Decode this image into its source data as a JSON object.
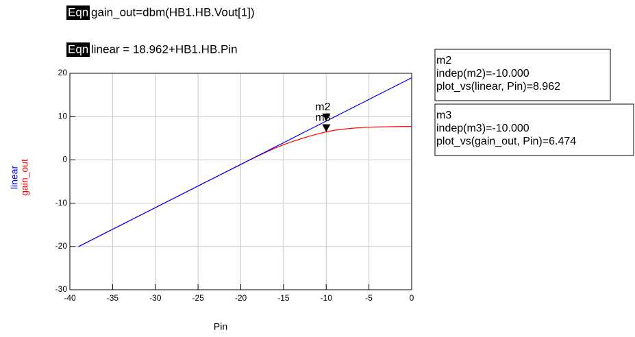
{
  "chart_data": {
    "type": "line",
    "equations": [
      {
        "tag": "Eqn",
        "text": "gain_out=dbm(HB1.HB.Vout[1])"
      },
      {
        "tag": "Eqn",
        "text": "linear = 18.962+HB1.HB.Pin"
      }
    ],
    "x_label": "Pin",
    "y_labels": [
      {
        "text": "linear",
        "color": "#0000ff"
      },
      {
        "text": "gain_out",
        "color": "#ff0000"
      }
    ],
    "x": [
      -39,
      -38,
      -37,
      -36,
      -35,
      -34,
      -33,
      -32,
      -31,
      -30,
      -29,
      -28,
      -27,
      -26,
      -25,
      -24,
      -23,
      -22,
      -21,
      -20,
      -19,
      -18,
      -17,
      -16,
      -15,
      -14,
      -13,
      -12,
      -11,
      -10,
      -9,
      -8,
      -7,
      -6,
      -5,
      -4,
      -3,
      -2,
      -1,
      0
    ],
    "series": [
      {
        "name": "linear",
        "color": "#0000ff",
        "values": [
          -20.038,
          -19.038,
          -18.038,
          -17.038,
          -16.038,
          -15.038,
          -14.038,
          -13.038,
          -12.038,
          -11.038,
          -10.038,
          -9.038,
          -8.038,
          -7.038,
          -6.038,
          -5.038,
          -4.038,
          -3.038,
          -2.038,
          -1.038,
          -0.038,
          0.962,
          1.962,
          2.962,
          3.962,
          4.962,
          5.962,
          6.962,
          7.962,
          8.962,
          9.962,
          10.962,
          11.962,
          12.962,
          13.962,
          14.962,
          15.962,
          16.962,
          17.962,
          18.962
        ]
      },
      {
        "name": "gain_out",
        "color": "#ff0000",
        "values": [
          -20.04,
          -19.04,
          -18.04,
          -17.04,
          -16.04,
          -15.04,
          -14.04,
          -13.04,
          -12.04,
          -11.04,
          -10.04,
          -9.04,
          -8.04,
          -7.04,
          -6.04,
          -5.04,
          -4.05,
          -3.05,
          -2.06,
          -1.07,
          -0.09,
          0.88,
          1.82,
          2.7,
          3.5,
          4.2,
          4.85,
          5.45,
          5.98,
          6.474,
          6.85,
          7.1,
          7.3,
          7.43,
          7.53,
          7.6,
          7.65,
          7.68,
          7.7,
          7.72
        ]
      }
    ],
    "xlim": [
      -40,
      0
    ],
    "ylim": [
      -30,
      20
    ],
    "xticks": [
      -40,
      -35,
      -30,
      -25,
      -20,
      -15,
      -10,
      -5,
      0
    ],
    "yticks": [
      -30,
      -20,
      -10,
      0,
      10,
      20
    ],
    "grid": true,
    "markers": [
      {
        "name": "m2",
        "x": -10,
        "y": 8.962,
        "lines": [
          "m2",
          "indep(m2)=-10.000",
          "plot_vs(linear, Pin)=8.962"
        ]
      },
      {
        "name": "m3",
        "x": -10,
        "y": 6.474,
        "lines": [
          "m3",
          "indep(m3)=-10.000",
          "plot_vs(gain_out, Pin)=6.474"
        ]
      }
    ]
  }
}
